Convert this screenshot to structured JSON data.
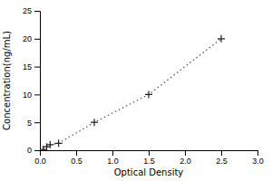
{
  "chart_data": {
    "type": "line",
    "xlabel": "Optical Density",
    "ylabel": "Concentration(ng/mL)",
    "x": [
      0.047,
      0.094,
      0.141,
      0.258,
      0.75,
      1.5,
      2.5
    ],
    "values": [
      0.156,
      0.625,
      1.0,
      1.25,
      5.0,
      10.0,
      20.0
    ],
    "xlim": [
      0,
      3
    ],
    "ylim": [
      0,
      25
    ],
    "xticks": [
      {
        "value": 0,
        "label": "0.0"
      },
      {
        "value": 0.5,
        "label": "0.5"
      },
      {
        "value": 1,
        "label": "1.0"
      },
      {
        "value": 1.5,
        "label": "1.5"
      },
      {
        "value": 2,
        "label": "2.0"
      },
      {
        "value": 2.5,
        "label": "2.5"
      },
      {
        "value": 3,
        "label": "3.0"
      }
    ],
    "yticks": [
      0,
      5,
      10,
      15,
      20,
      25
    ],
    "color": "#555555",
    "marker": "plus",
    "line_style": "dotted",
    "grid": false
  }
}
